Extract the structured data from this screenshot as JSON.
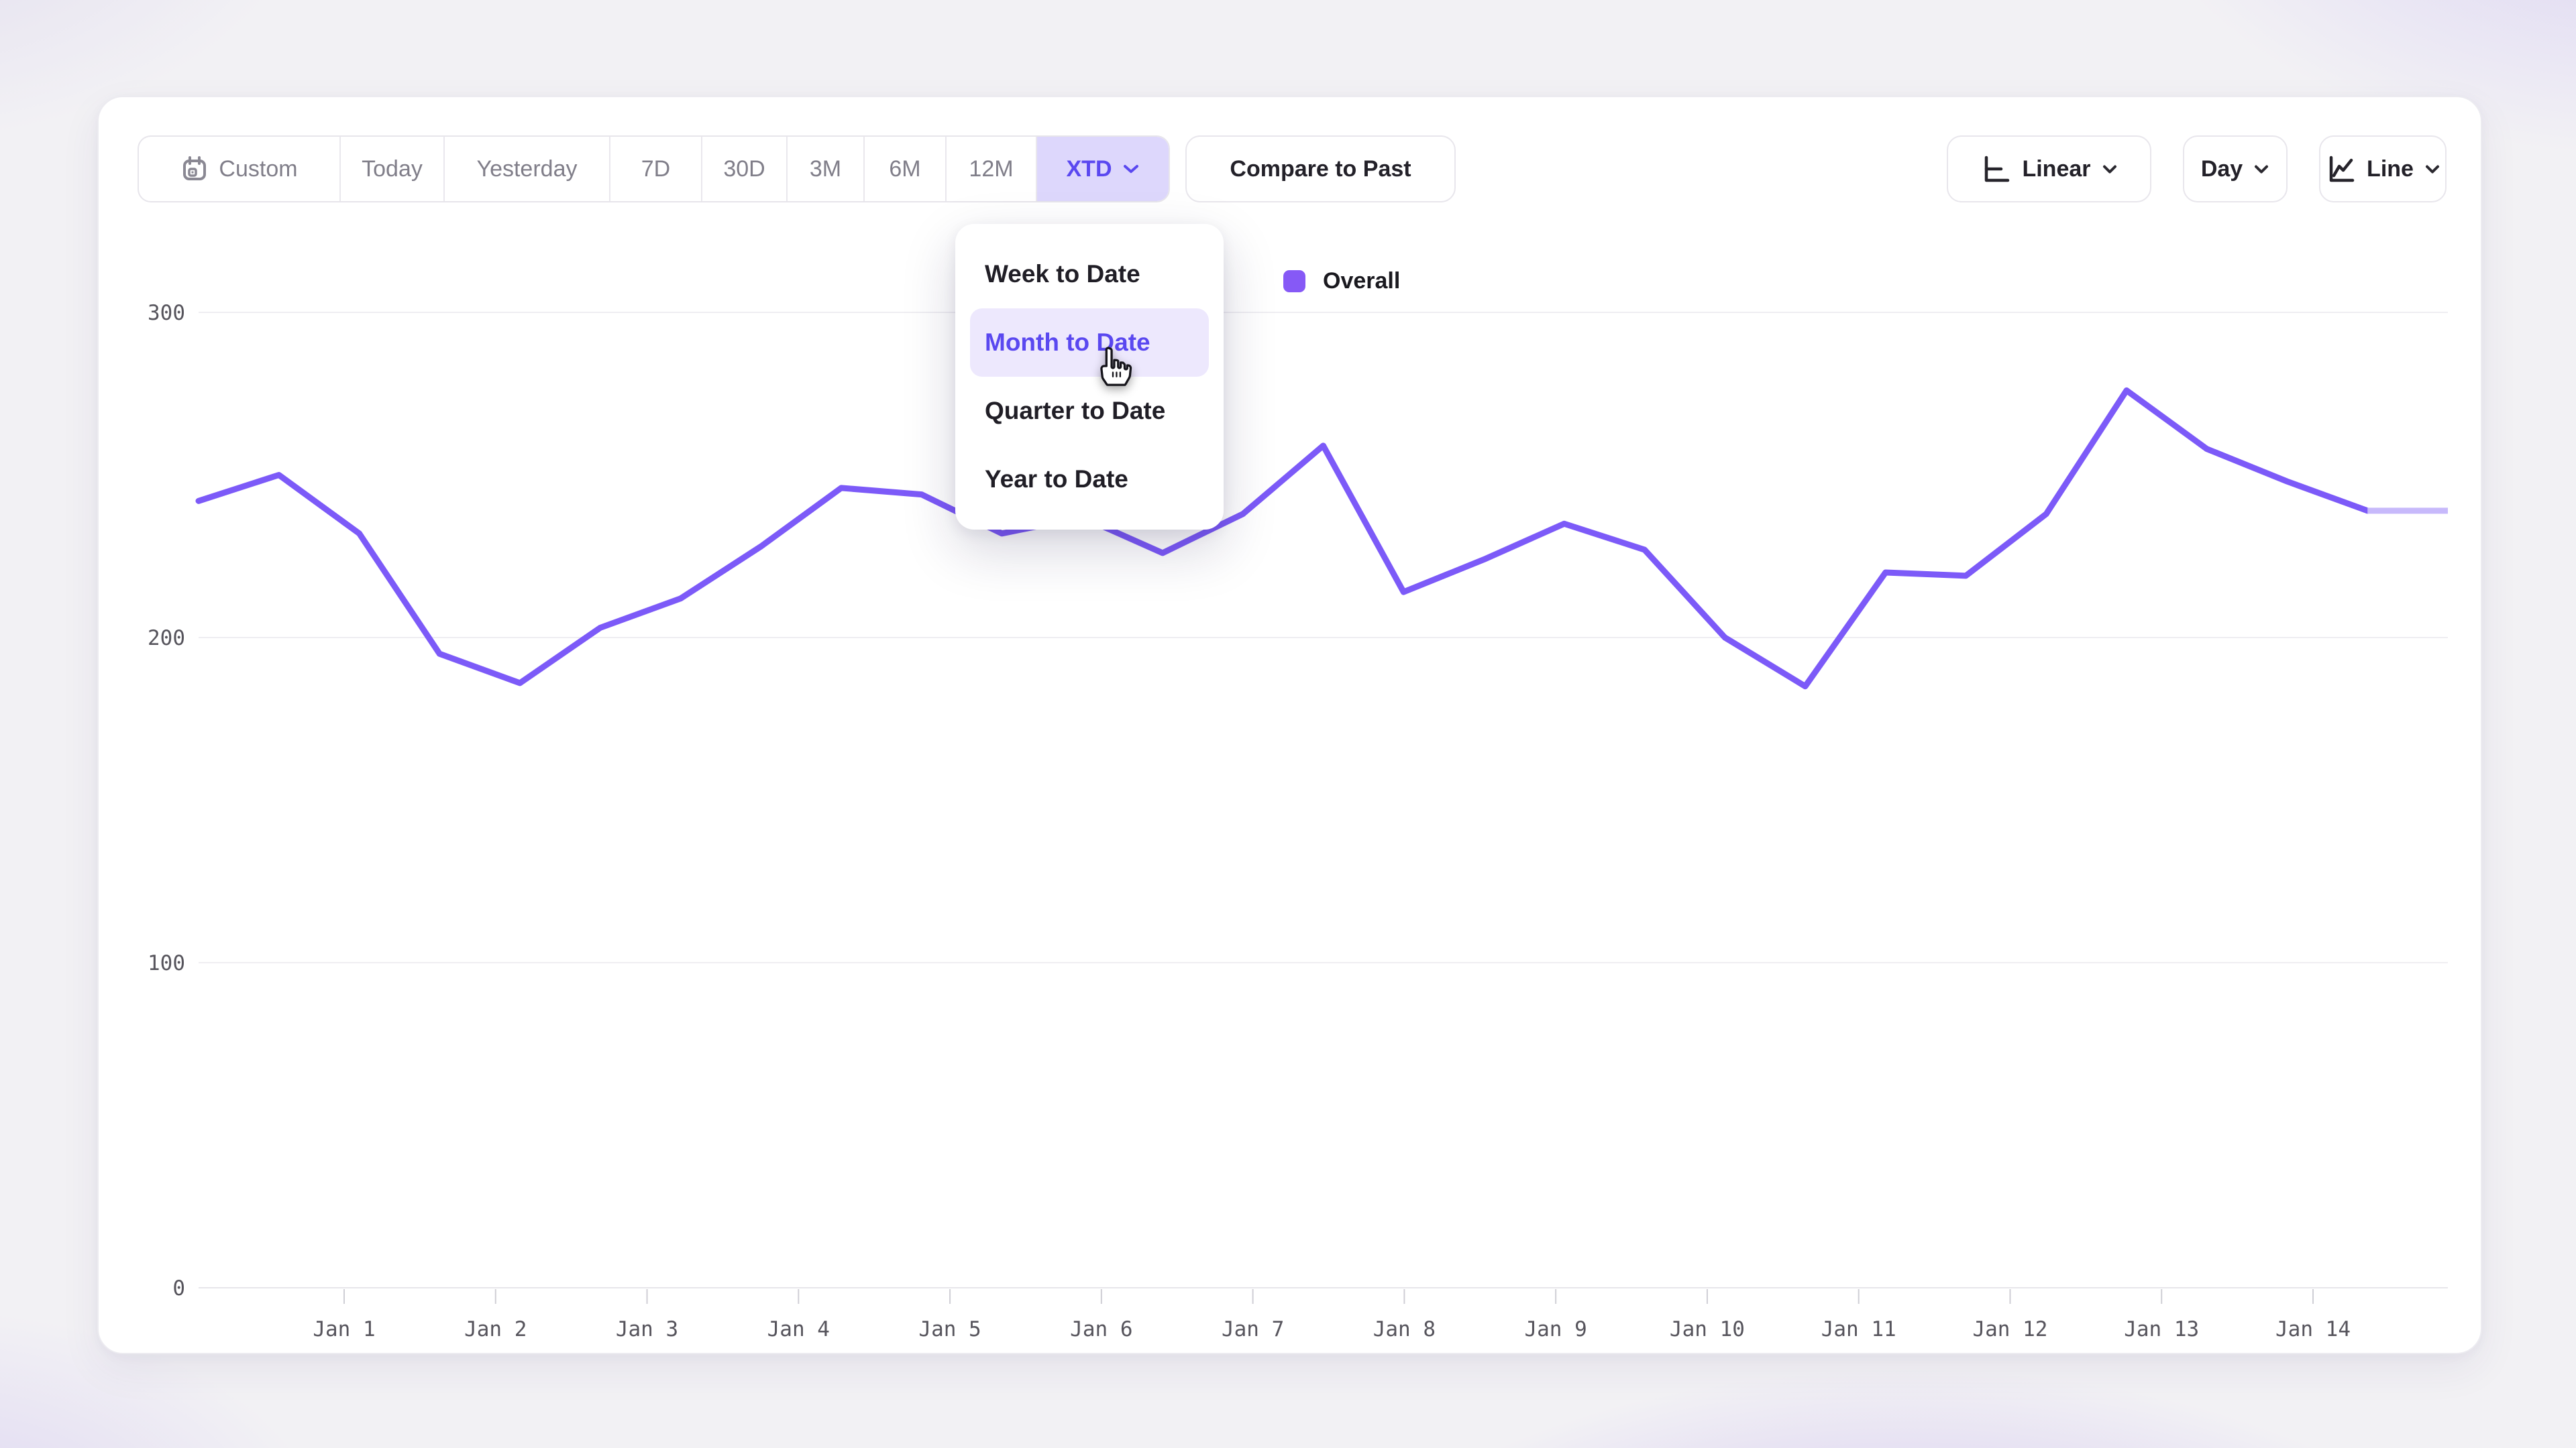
{
  "toolbar": {
    "ranges": [
      {
        "label": "Custom"
      },
      {
        "label": "Today"
      },
      {
        "label": "Yesterday"
      },
      {
        "label": "7D"
      },
      {
        "label": "30D"
      },
      {
        "label": "3M"
      },
      {
        "label": "6M"
      },
      {
        "label": "12M"
      },
      {
        "label": "XTD"
      }
    ],
    "active_range": "XTD",
    "compare_label": "Compare to Past",
    "scale_label": "Linear",
    "granularity_label": "Day",
    "chart_type_label": "Line"
  },
  "dropdown": {
    "items": [
      {
        "label": "Week to Date"
      },
      {
        "label": "Month to Date"
      },
      {
        "label": "Quarter to Date"
      },
      {
        "label": "Year to Date"
      }
    ],
    "active_item": "Month to Date"
  },
  "legend": {
    "label": "Overall",
    "color": "#8659f6"
  },
  "colors": {
    "accent": "#5a48f0",
    "line": "#7c5af8",
    "line_faded": "#c7b9fb",
    "range_active_bg": "#ddd7fc",
    "menu_active_bg": "#ede8fd"
  },
  "chart_data": {
    "type": "line",
    "title": "",
    "xlabel": "",
    "ylabel": "",
    "ylim": [
      0,
      300
    ],
    "y_ticks": [
      0,
      100,
      200,
      300
    ],
    "x_tick_labels": [
      "Jan 1",
      "Jan 2",
      "Jan 3",
      "Jan 4",
      "Jan 5",
      "Jan 6",
      "Jan 7",
      "Jan 8",
      "Jan 9",
      "Jan 10",
      "Jan 11",
      "Jan 12",
      "Jan 13",
      "Jan 14"
    ],
    "grid": "horizontal-only",
    "legend_position": "top-center",
    "series": [
      {
        "name": "Overall",
        "color": "#7c5af8",
        "values": [
          242,
          250,
          232,
          195,
          186,
          203,
          212,
          228,
          246,
          244,
          232,
          237,
          226,
          238,
          259,
          214,
          224,
          235,
          227,
          200,
          185,
          220,
          219,
          238,
          276,
          258,
          248,
          239,
          239
        ],
        "last_segment_faded": true
      }
    ],
    "layout": {
      "plot_left": 296,
      "plot_right": 3649,
      "y_base": 1921,
      "y_top": 466,
      "y_label_right": 276,
      "tick_first_x": 513,
      "tick_last_x": 3448,
      "grid_color": "#efeef2",
      "baseline_color": "#e7e6ea",
      "tick_color": "#cfced5",
      "faded_color": "#c7b9fb",
      "line_width": 9
    }
  }
}
